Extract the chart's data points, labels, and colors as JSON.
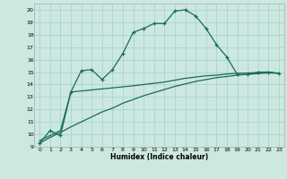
{
  "xlabel": "Humidex (Indice chaleur)",
  "bg_color": "#cce8e0",
  "grid_color": "#aad4cc",
  "line_color": "#1a6b5a",
  "xlim": [
    -0.5,
    23.5
  ],
  "ylim": [
    9,
    20.5
  ],
  "xticks": [
    0,
    1,
    2,
    3,
    4,
    5,
    6,
    7,
    8,
    9,
    10,
    11,
    12,
    13,
    14,
    15,
    16,
    17,
    18,
    19,
    20,
    21,
    22,
    23
  ],
  "yticks": [
    9,
    10,
    11,
    12,
    13,
    14,
    15,
    16,
    17,
    18,
    19,
    20
  ],
  "curve1_x": [
    0,
    1,
    2,
    3,
    4,
    5,
    6,
    7,
    8,
    9,
    10,
    11,
    12,
    13,
    14,
    15,
    16,
    17,
    18,
    19,
    20,
    21,
    22,
    23
  ],
  "curve1_y": [
    9.3,
    10.3,
    9.9,
    13.4,
    15.1,
    15.2,
    14.4,
    15.2,
    16.5,
    18.2,
    18.5,
    18.9,
    18.9,
    19.9,
    20.0,
    19.5,
    18.5,
    17.2,
    16.2,
    14.8,
    14.8,
    15.0,
    15.0,
    14.9
  ],
  "curve2_x": [
    0,
    2,
    3,
    9,
    10,
    11,
    12,
    13,
    14,
    15,
    16,
    17,
    18,
    19,
    20,
    21,
    22,
    23
  ],
  "curve2_y": [
    9.5,
    10.3,
    13.4,
    13.9,
    14.0,
    14.1,
    14.2,
    14.35,
    14.5,
    14.6,
    14.7,
    14.75,
    14.85,
    14.9,
    14.93,
    14.95,
    15.0,
    14.9
  ],
  "curve3_x": [
    0,
    1,
    2,
    3,
    4,
    5,
    6,
    7,
    8,
    9,
    10,
    11,
    12,
    13,
    14,
    15,
    16,
    17,
    18,
    19,
    20,
    21,
    22,
    23
  ],
  "curve3_y": [
    9.3,
    9.75,
    10.15,
    10.6,
    11.0,
    11.4,
    11.8,
    12.1,
    12.5,
    12.8,
    13.1,
    13.35,
    13.6,
    13.85,
    14.05,
    14.25,
    14.4,
    14.55,
    14.65,
    14.75,
    14.82,
    14.88,
    14.93,
    14.9
  ]
}
